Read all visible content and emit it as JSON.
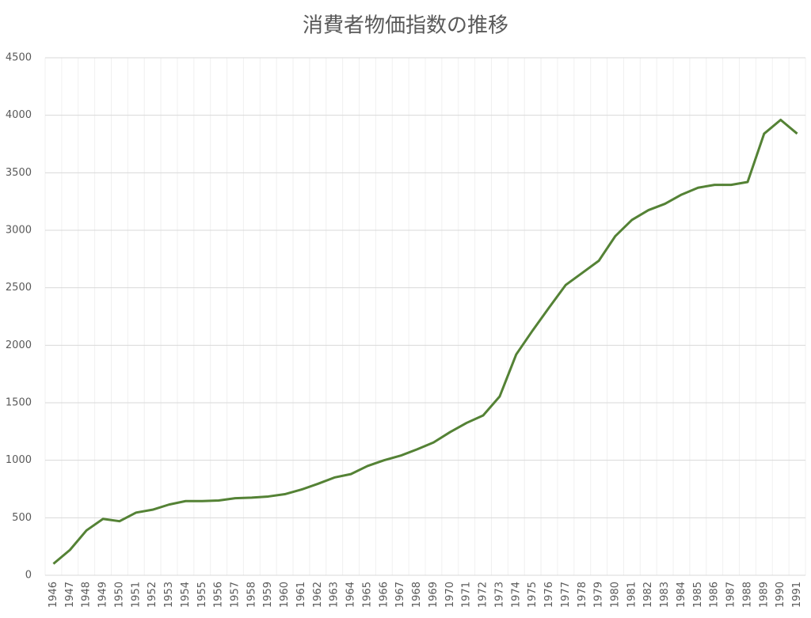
{
  "chart_data": {
    "type": "line",
    "title": "消費者物価指数の推移",
    "categories": [
      "1946",
      "1947",
      "1948",
      "1949",
      "1950",
      "1951",
      "1952",
      "1953",
      "1954",
      "1955",
      "1956",
      "1957",
      "1958",
      "1959",
      "1960",
      "1961",
      "1962",
      "1963",
      "1964",
      "1965",
      "1966",
      "1967",
      "1968",
      "1969",
      "1970",
      "1971",
      "1972",
      "1973",
      "1974",
      "1975",
      "1976",
      "1977",
      "1978",
      "1979",
      "1980",
      "1981",
      "1982",
      "1983",
      "1984",
      "1985",
      "1986",
      "1987",
      "1988",
      "1989",
      "1990",
      "1991"
    ],
    "series": [
      {
        "color": "#548235",
        "values": [
          100,
          220,
          390,
          490,
          470,
          545,
          570,
          615,
          645,
          645,
          650,
          670,
          675,
          685,
          705,
          745,
          795,
          850,
          880,
          950,
          1000,
          1040,
          1095,
          1155,
          1245,
          1325,
          1390,
          1555,
          1920,
          2130,
          2330,
          2525,
          2630,
          2735,
          2950,
          3090,
          3175,
          3230,
          3310,
          3370,
          3395,
          3395,
          3420,
          3840,
          3960,
          3840
        ]
      }
    ],
    "ylim": [
      0,
      4500
    ],
    "yticks": [
      0,
      500,
      1000,
      1500,
      2000,
      2500,
      3000,
      3500,
      4000,
      4500
    ],
    "grid": true
  }
}
